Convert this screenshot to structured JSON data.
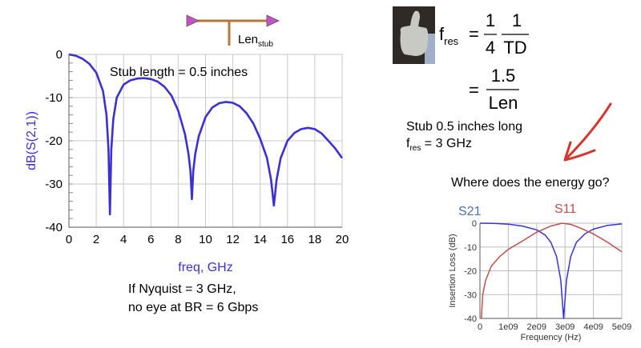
{
  "schematic": {
    "label": "Len",
    "label_sub": "stub"
  },
  "main_plot": {
    "annotation": "Stub length = 0.5 inches"
  },
  "caption": {
    "line1": "If Nyquist = 3 GHz,",
    "line2": "no eye at BR = 6 Gbps"
  },
  "formula": {
    "f": "f",
    "f_sub": "res",
    "eq": "=",
    "num1": "1",
    "den1": "4",
    "num2": "1",
    "den2": "TD",
    "num3": "1.5",
    "den3": "Len"
  },
  "notes": {
    "line1": "Stub 0.5 inches long",
    "line2_f": "f",
    "line2_sub": "res",
    "line2_rest": " = 3 GHz",
    "question": "Where does the energy go?"
  },
  "colors": {
    "main_trace": "#3b2fd6",
    "s21": "#3434d8",
    "s11": "#c0504d",
    "s21_label": "#4a6fb5",
    "arrow": "#d9342b",
    "stub": "#b5773a",
    "port": "#c653c6"
  },
  "chart_data": [
    {
      "type": "line",
      "title": "",
      "xlabel": "freq, GHz",
      "ylabel": "dB(S(2,1))",
      "xlim": [
        0,
        20
      ],
      "ylim": [
        -40,
        0
      ],
      "xticks": [
        "0",
        "2",
        "4",
        "6",
        "8",
        "10",
        "12",
        "14",
        "16",
        "18",
        "20"
      ],
      "yticks": [
        "0",
        "-10",
        "-20",
        "-30",
        "-40"
      ],
      "grid": true,
      "series": [
        {
          "name": "dB(S(2,1))",
          "x": [
            0,
            0.5,
            1,
            1.5,
            2,
            2.5,
            2.75,
            2.9,
            3,
            3.1,
            3.25,
            3.5,
            4,
            4.5,
            5,
            5.5,
            6,
            6.5,
            7,
            7.5,
            8,
            8.5,
            8.75,
            8.9,
            9,
            9.1,
            9.25,
            9.5,
            10,
            10.5,
            11,
            11.5,
            12,
            12.5,
            13,
            13.5,
            14,
            14.5,
            14.8,
            15,
            15.2,
            15.5,
            16,
            16.5,
            17,
            17.5,
            18,
            18.5,
            19,
            19.5,
            20
          ],
          "y": [
            0,
            -0.3,
            -1,
            -2.2,
            -4.2,
            -8.5,
            -14,
            -22,
            -37,
            -22,
            -15,
            -10,
            -7,
            -6,
            -5.6,
            -5.5,
            -5.7,
            -6.3,
            -7.5,
            -9.5,
            -13,
            -18.5,
            -23,
            -27,
            -33.5,
            -27,
            -23,
            -19,
            -14.5,
            -12.3,
            -11.3,
            -11,
            -11.2,
            -12,
            -13.6,
            -16,
            -19.5,
            -24,
            -29,
            -35,
            -29,
            -24,
            -20,
            -18.2,
            -17.3,
            -17,
            -17.3,
            -18.3,
            -20,
            -21.8,
            -24
          ]
        }
      ]
    },
    {
      "type": "line",
      "title": "",
      "xlabel": "Frequency (Hz)",
      "ylabel": "Insertion Loss (dB)",
      "xlim": [
        0,
        5000000000.0
      ],
      "ylim": [
        -40,
        0
      ],
      "xticks": [
        "0",
        "1e09",
        "2e09",
        "3e09",
        "4e09",
        "5e09"
      ],
      "yticks": [
        "0",
        "-10",
        "-20",
        "-30",
        "-40"
      ],
      "grid": true,
      "legend": [
        "S21",
        "S11"
      ],
      "series": [
        {
          "name": "S21",
          "x": [
            0,
            500000000.0,
            1000000000.0,
            1500000000.0,
            2000000000.0,
            2300000000.0,
            2500000000.0,
            2700000000.0,
            2850000000.0,
            2950000000.0,
            3050000000.0,
            3200000000.0,
            3400000000.0,
            3700000000.0,
            4000000000.0,
            4500000000.0,
            5000000000.0
          ],
          "y": [
            0,
            -0.1,
            -0.4,
            -1.2,
            -2.8,
            -5,
            -8,
            -14,
            -24,
            -40,
            -24,
            -14,
            -8,
            -4.5,
            -2.5,
            -0.9,
            -0.3
          ]
        },
        {
          "name": "S11",
          "x": [
            50000000.0,
            100000000.0,
            200000000.0,
            400000000.0,
            700000000.0,
            1000000000.0,
            1500000000.0,
            2000000000.0,
            2500000000.0,
            2900000000.0,
            3200000000.0,
            3500000000.0,
            4000000000.0,
            4500000000.0,
            5000000000.0
          ],
          "y": [
            -40,
            -30,
            -24,
            -18,
            -14,
            -11,
            -7.5,
            -3.8,
            -1.2,
            0,
            -0.5,
            -1.8,
            -4.5,
            -8,
            -12
          ]
        }
      ]
    }
  ]
}
